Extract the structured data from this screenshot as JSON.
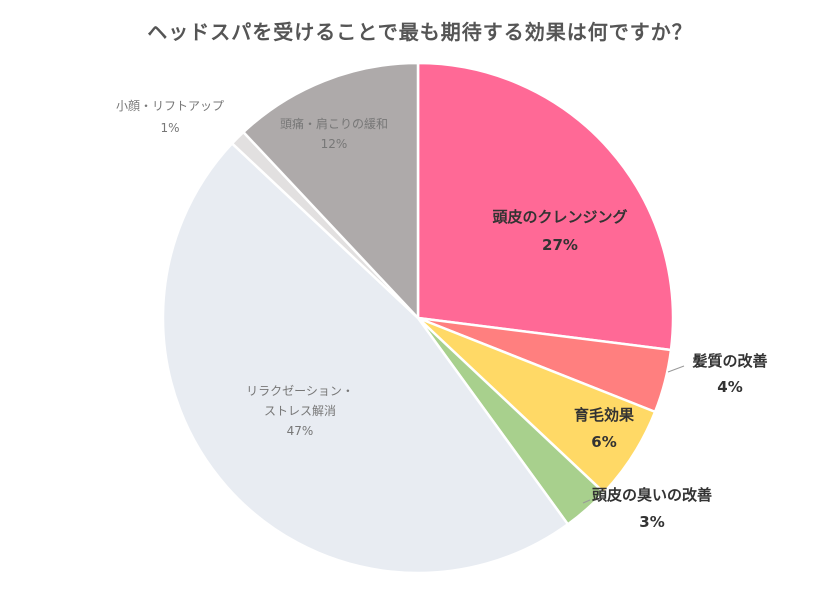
{
  "chart_data": {
    "type": "pie",
    "title": "ヘッドスパを受けることで最も期待する効果は何ですか？",
    "start_angle_deg": 0,
    "direction": "clockwise",
    "slices": [
      {
        "label": "頭皮のクレンジング",
        "value": 27,
        "value_label": "27%",
        "color": "#ff6996",
        "text_color": "#333333",
        "bold": true,
        "label_lines": [
          "頭皮のクレンジング"
        ]
      },
      {
        "label": "髪質の改善",
        "value": 4,
        "value_label": "4%",
        "color": "#ff7f7f",
        "text_color": "#333333",
        "bold": true,
        "label_lines": [
          "髪質の改善"
        ]
      },
      {
        "label": "育毛効果",
        "value": 6,
        "value_label": "6%",
        "color": "#ffd966",
        "text_color": "#333333",
        "bold": true,
        "label_lines": [
          "育毛効果"
        ]
      },
      {
        "label": "頭皮の臭いの改善",
        "value": 3,
        "value_label": "3%",
        "color": "#a8d08d",
        "text_color": "#333333",
        "bold": true,
        "label_lines": [
          "頭皮の臭いの改善"
        ]
      },
      {
        "label": "リラクゼーション・ストレス解消",
        "value": 47,
        "value_label": "47%",
        "color": "#e8ecf2",
        "text_color": "#777777",
        "bold": false,
        "label_lines": [
          "リラクゼーション・",
          "ストレス解消"
        ]
      },
      {
        "label": "小顔・リフトアップ",
        "value": 1,
        "value_label": "1%",
        "color": "#e2e0e0",
        "text_color": "#777777",
        "bold": false,
        "label_lines": [
          "小顔・リフトアップ"
        ]
      },
      {
        "label": "頭痛・肩こりの緩和",
        "value": 12,
        "value_label": "12%",
        "color": "#aeaaaa",
        "text_color": "#777777",
        "bold": false,
        "label_lines": [
          "頭痛・肩こりの緩和"
        ]
      }
    ]
  }
}
